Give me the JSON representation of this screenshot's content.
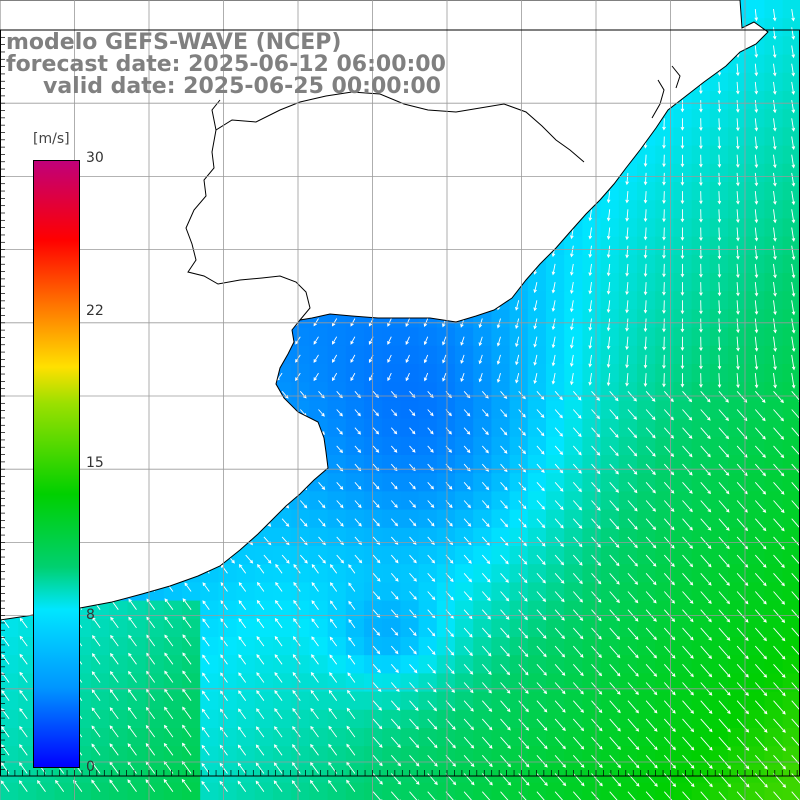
{
  "header": {
    "model_line": "modelo GEFS-WAVE (NCEP)",
    "forecast_line": "forecast date: 2025-06-12 06:00:00",
    "valid_line": "valid date: 2025-06-25 00:00:00"
  },
  "colorbar": {
    "unit": "[m/s]",
    "ticks": [
      "30",
      "22",
      "15",
      "8",
      "0"
    ],
    "min": 0,
    "max": 30,
    "colors": [
      "#0000ff",
      "#0095ff",
      "#00e6ff",
      "#00d070",
      "#00d000",
      "#9be000",
      "#ffe000",
      "#ff7700",
      "#ff0000",
      "#c0007a"
    ]
  },
  "map": {
    "land_color": "#ffffff",
    "coast_color": "#000000",
    "grid_color": "#999999",
    "vector_color": "#ffffff",
    "region": "South Atlantic, Brazilian Uruguay and Argentine coast",
    "field": "wind speed with direction vectors"
  }
}
